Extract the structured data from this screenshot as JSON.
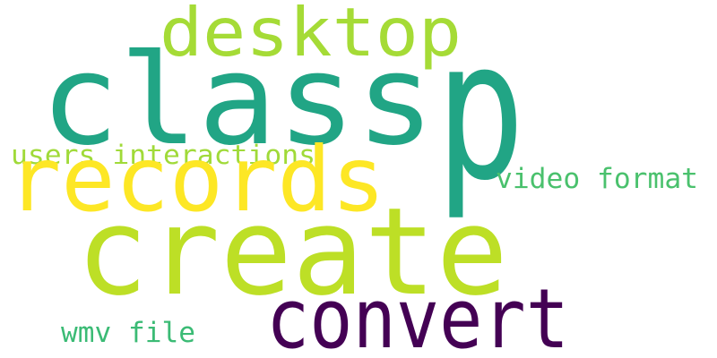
{
  "words": [
    {
      "id": "word-p",
      "text": "p",
      "color": "#21a585"
    },
    {
      "id": "word-class",
      "text": "class",
      "color": "#21a585"
    },
    {
      "id": "word-desktop",
      "text": "desktop",
      "color": "#a5db36"
    },
    {
      "id": "word-records",
      "text": "records",
      "color": "#fde725"
    },
    {
      "id": "word-create",
      "text": "create",
      "color": "#bddf26"
    },
    {
      "id": "word-convert",
      "text": "convert",
      "color": "#440154"
    },
    {
      "id": "word-users-interactions",
      "text": "users interactions",
      "color": "#a0da39"
    },
    {
      "id": "word-video-format",
      "text": "video format",
      "color": "#4ac16d"
    },
    {
      "id": "word-wmv-file",
      "text": "wmv file",
      "color": "#3bbb75"
    }
  ]
}
